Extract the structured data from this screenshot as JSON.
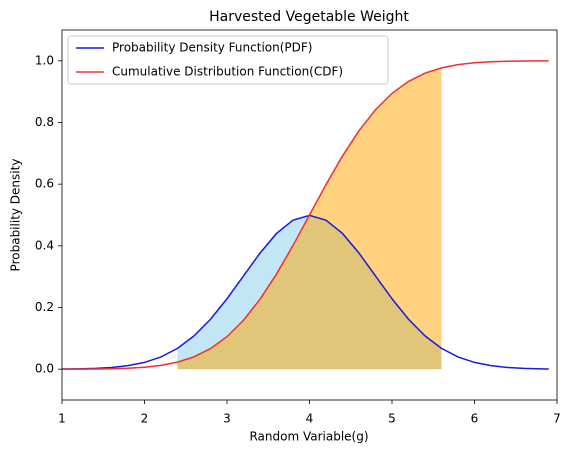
{
  "chart_data": {
    "type": "line",
    "title": "Harvested Vegetable Weight",
    "xlabel": "Random Variable(g)",
    "ylabel": "Probability Density",
    "x": [
      1.0,
      1.2,
      1.4,
      1.6,
      1.8,
      2.0,
      2.2,
      2.4,
      2.6,
      2.8,
      3.0,
      3.2,
      3.4,
      3.6,
      3.8,
      4.0,
      4.2,
      4.4,
      4.6,
      4.8,
      5.0,
      5.2,
      5.4,
      5.6,
      5.8,
      6.0,
      6.2,
      6.4,
      6.6,
      6.8,
      6.9
    ],
    "series": [
      {
        "name": "Probability Density Function(PDF)",
        "color": "#1a1adf",
        "fill_color": "#87ceeb",
        "values": [
          0.0004,
          0.0011,
          0.0025,
          0.0055,
          0.0114,
          0.0219,
          0.0397,
          0.0675,
          0.1079,
          0.1619,
          0.2283,
          0.3025,
          0.3764,
          0.4401,
          0.4834,
          0.4987,
          0.4834,
          0.4401,
          0.3764,
          0.3025,
          0.2283,
          0.1619,
          0.1079,
          0.0675,
          0.0397,
          0.0219,
          0.0114,
          0.0055,
          0.0025,
          0.0011,
          0.0007
        ]
      },
      {
        "name": "Cumulative Distribution Function(CDF)",
        "color": "#f03030",
        "fill_color": "#ffa500",
        "values": [
          0.0001,
          0.0002,
          0.0006,
          0.0013,
          0.003,
          0.0062,
          0.0122,
          0.0228,
          0.0401,
          0.0668,
          0.1056,
          0.1587,
          0.2266,
          0.3085,
          0.4013,
          0.5,
          0.5987,
          0.6915,
          0.7734,
          0.8413,
          0.8944,
          0.9332,
          0.9599,
          0.9772,
          0.9878,
          0.9938,
          0.997,
          0.9987,
          0.9994,
          0.9998,
          0.9999
        ]
      }
    ],
    "shade_xlim": [
      2.4,
      5.6
    ],
    "xlim": [
      1,
      7
    ],
    "ylim": [
      -0.1,
      1.1
    ],
    "xticks": [
      1,
      2,
      3,
      4,
      5,
      6,
      7
    ],
    "yticks": [
      {
        "value": 0,
        "label": "0.0"
      },
      0.2,
      0.4,
      0.6,
      0.8,
      {
        "value": 1,
        "label": "1.0"
      }
    ],
    "grid": false,
    "legend": "upper left"
  }
}
